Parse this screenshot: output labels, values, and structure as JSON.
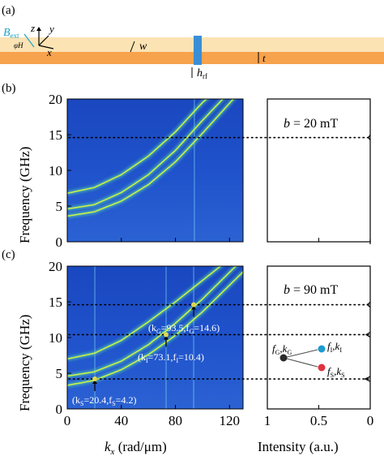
{
  "panel_labels": {
    "a": "(a)",
    "b": "(b)",
    "c": "(c)"
  },
  "schematic": {
    "B_ext_main": "B",
    "B_ext_sub": "ext",
    "axis_z": "z",
    "axis_y": "y",
    "axis_x": "x",
    "phi_label": "φH",
    "w_label": "w",
    "t_label": "t",
    "h_main": "h",
    "h_sub": "rf",
    "colors": {
      "film_top": "#fce3b4",
      "film_bottom": "#f7a24d",
      "antenna": "#3a8ed6",
      "field_label": "#1fa3c9"
    }
  },
  "axes": {
    "ylabel": "Frequency (GHz)",
    "xlabel_main": "k",
    "xlabel_sub": "x",
    "xlabel_unit": " (rad/μm)",
    "intensity_label": "Intensity (a.u.)",
    "freq_ticks": [
      "0",
      "5",
      "10",
      "15",
      "20"
    ],
    "k_ticks": [
      "0",
      "40",
      "80",
      "120"
    ],
    "intensity_ticks": [
      "1",
      "0.5",
      "0"
    ]
  },
  "chart_data": [
    {
      "type": "heatmap",
      "panel": "(b)",
      "field_label": "b = 20 mT",
      "xlabel": "",
      "ylabel": "Frequency (GHz)",
      "xlim": [
        0,
        130
      ],
      "ylim": [
        0,
        20
      ],
      "x_ticks": [
        0,
        40,
        80,
        120
      ],
      "y_ticks": [
        0,
        5,
        10,
        15,
        20
      ],
      "dispersion_branches": [
        {
          "k": [
            0,
            20,
            40,
            60,
            80,
            100,
            115
          ],
          "f": [
            6.8,
            7.6,
            9.4,
            12.0,
            15.4,
            19.5,
            22.0
          ]
        },
        {
          "k": [
            0,
            20,
            40,
            60,
            80,
            100,
            125
          ],
          "f": [
            4.6,
            5.2,
            6.9,
            9.4,
            12.8,
            17.0,
            22.0
          ]
        },
        {
          "k": [
            0,
            20,
            40,
            60,
            80,
            100,
            130
          ],
          "f": [
            3.6,
            4.2,
            5.7,
            8.0,
            11.2,
            15.2,
            21.5
          ]
        }
      ],
      "vertical_line_k": 94,
      "dotted_line_f": 14.6,
      "intensity_profile": [
        {
          "f": 14.6,
          "peak": 0.02
        },
        {
          "f": 0.0,
          "peak": 0.0
        }
      ]
    },
    {
      "type": "heatmap",
      "panel": "(c)",
      "field_label": "b = 90 mT",
      "xlabel": "k_x (rad/μm)",
      "ylabel": "Frequency (GHz)",
      "xlim": [
        0,
        130
      ],
      "ylim": [
        0,
        20
      ],
      "x_ticks": [
        0,
        40,
        80,
        120
      ],
      "y_ticks": [
        0,
        5,
        10,
        15,
        20
      ],
      "dispersion_branches": [
        {
          "k": [
            0,
            20,
            40,
            60,
            80,
            100,
            120
          ],
          "f": [
            7.0,
            7.8,
            9.6,
            12.2,
            15.0,
            18.0,
            21.0
          ]
        },
        {
          "k": [
            0,
            20,
            40,
            60,
            80,
            100,
            130
          ],
          "f": [
            4.6,
            5.2,
            6.7,
            9.0,
            12.0,
            15.4,
            21.0
          ]
        },
        {
          "k": [
            0,
            20,
            40,
            60,
            80,
            100,
            130
          ],
          "f": [
            3.3,
            4.0,
            5.5,
            7.6,
            10.3,
            13.6,
            19.2
          ]
        }
      ],
      "vertical_lines_k": [
        20.4,
        73.1,
        93.5
      ],
      "dotted_lines_f": [
        14.6,
        10.4,
        4.2
      ],
      "annotations": [
        {
          "text": "(kG=93.5,fG=14.6)",
          "k": 93.5,
          "f": 14.6
        },
        {
          "text": "(kI=73.1,fI=10.4)",
          "k": 73.1,
          "f": 10.4
        },
        {
          "text": "(kS=20.4,fS=4.2)",
          "k": 20.4,
          "f": 4.2
        }
      ],
      "intensity_profile": [
        {
          "f": 14.6,
          "peak": 0.03
        },
        {
          "f": 10.4,
          "peak": 0.04
        },
        {
          "f": 4.2,
          "peak": 0.05
        }
      ]
    }
  ],
  "labels": {
    "b_top_main": "b",
    "b_top_val": " = 20 mT",
    "b_bot_main": "b",
    "b_bot_val": " = 90 mT",
    "ann_G": {
      "open": "(k",
      "k_sub": "G",
      "mid": "=93.5,f",
      "f_sub": "G",
      "close": "=14.6)"
    },
    "ann_I": {
      "open": "(k",
      "k_sub": "I",
      "mid": "=73.1,f",
      "f_sub": "I",
      "close": "=10.4)"
    },
    "ann_S": {
      "open": "(k",
      "k_sub": "S",
      "mid": "=20.4,f",
      "f_sub": "S",
      "close": "=4.2)"
    },
    "diag_G": {
      "f": "f",
      "fs": "G",
      "k": ",k",
      "ks": "G"
    },
    "diag_I": {
      "f": "f",
      "fs": "I",
      "k": ",k",
      "ks": "I"
    },
    "diag_S": {
      "f": "f",
      "fs": "S",
      "k": ",k",
      "ks": "S"
    }
  },
  "colors": {
    "heatmap_bg": "#1f50c6",
    "branch": "#c8f04a",
    "dot_G": "#2a2a2a",
    "dot_I": "#1d9bd0",
    "dot_S": "#e03340"
  }
}
